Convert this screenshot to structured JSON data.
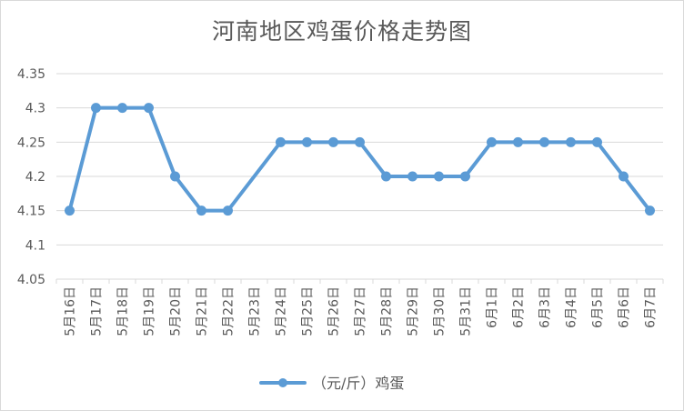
{
  "chart_data": {
    "type": "line",
    "title": "河南地区鸡蛋价格走势图",
    "xlabel": "",
    "ylabel": "",
    "ylim": [
      4.05,
      4.35
    ],
    "yticks": [
      "4.05",
      "4.1",
      "4.15",
      "4.2",
      "4.25",
      "4.3",
      "4.35"
    ],
    "grid": true,
    "legend_position": "bottom",
    "categories": [
      "5月16日",
      "5月17日",
      "5月18日",
      "5月19日",
      "5月20日",
      "5月21日",
      "5月22日",
      "5月23日",
      "5月24日",
      "5月25日",
      "5月26日",
      "5月27日",
      "5月28日",
      "5月29日",
      "5月30日",
      "5月31日",
      "6月1日",
      "6月2日",
      "6月3日",
      "6月4日",
      "6月5日",
      "6月6日",
      "6月7日"
    ],
    "series": [
      {
        "name": "（元/斤）鸡蛋",
        "color": "#5b9bd5",
        "values": [
          4.15,
          4.3,
          4.3,
          4.3,
          4.2,
          4.15,
          4.15,
          null,
          4.25,
          4.25,
          4.25,
          4.25,
          4.2,
          4.2,
          4.2,
          4.2,
          4.25,
          4.25,
          4.25,
          4.25,
          4.25,
          4.2,
          4.15
        ]
      }
    ]
  }
}
